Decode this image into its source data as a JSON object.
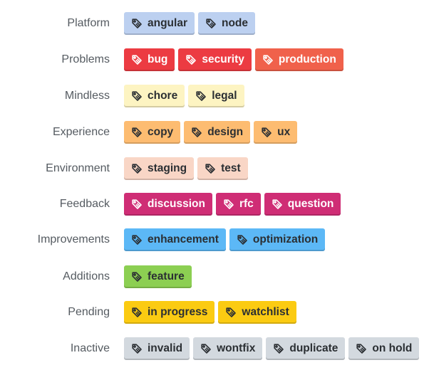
{
  "categories": [
    {
      "label": "Platform",
      "tags": [
        {
          "name": "angular",
          "color": "#bcd0f0",
          "text": "light"
        },
        {
          "name": "node",
          "color": "#bcd0f0",
          "text": "light"
        }
      ]
    },
    {
      "label": "Problems",
      "tags": [
        {
          "name": "bug",
          "color": "#ec3b42",
          "text": "dark"
        },
        {
          "name": "security",
          "color": "#ec3b42",
          "text": "dark"
        },
        {
          "name": "production",
          "color": "#f0614b",
          "text": "dark"
        }
      ]
    },
    {
      "label": "Mindless",
      "tags": [
        {
          "name": "chore",
          "color": "#fdf4c2",
          "text": "light"
        },
        {
          "name": "legal",
          "color": "#fdf4c2",
          "text": "light"
        }
      ]
    },
    {
      "label": "Experience",
      "tags": [
        {
          "name": "copy",
          "color": "#fdbc71",
          "text": "light"
        },
        {
          "name": "design",
          "color": "#fdbc71",
          "text": "light"
        },
        {
          "name": "ux",
          "color": "#fdbc71",
          "text": "light"
        }
      ]
    },
    {
      "label": "Environment",
      "tags": [
        {
          "name": "staging",
          "color": "#f9d6c6",
          "text": "light"
        },
        {
          "name": "test",
          "color": "#f9d6c6",
          "text": "light"
        }
      ]
    },
    {
      "label": "Feedback",
      "tags": [
        {
          "name": "discussion",
          "color": "#cf2d75",
          "text": "dark"
        },
        {
          "name": "rfc",
          "color": "#cf2d75",
          "text": "dark"
        },
        {
          "name": "question",
          "color": "#cf2d75",
          "text": "dark"
        }
      ]
    },
    {
      "label": "Improvements",
      "tags": [
        {
          "name": "enhancement",
          "color": "#5cb8f6",
          "text": "light"
        },
        {
          "name": "optimization",
          "color": "#5cb8f6",
          "text": "light"
        }
      ]
    },
    {
      "label": "Additions",
      "tags": [
        {
          "name": "feature",
          "color": "#8ccf52",
          "text": "light"
        }
      ]
    },
    {
      "label": "Pending",
      "tags": [
        {
          "name": "in progress",
          "color": "#fbcb12",
          "text": "light"
        },
        {
          "name": "watchlist",
          "color": "#fbcb12",
          "text": "light"
        }
      ]
    },
    {
      "label": "Inactive",
      "tags": [
        {
          "name": "invalid",
          "color": "#d3d9df",
          "text": "light"
        },
        {
          "name": "wontfix",
          "color": "#d3d9df",
          "text": "light"
        },
        {
          "name": "duplicate",
          "color": "#d3d9df",
          "text": "light"
        },
        {
          "name": "on hold",
          "color": "#d3d9df",
          "text": "light"
        }
      ]
    }
  ],
  "icon": "tag-icon"
}
